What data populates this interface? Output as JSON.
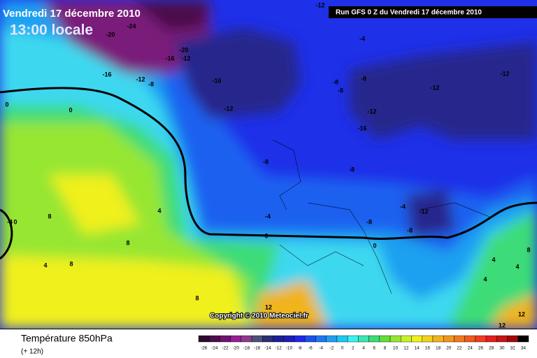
{
  "header": {
    "date": "Vendredi 17 décembre 2010",
    "time": "13:00 locale",
    "run": "Run GFS 0 Z du Vendredi 17 décembre 2010"
  },
  "copyright": "Copyright © 2010 Meteociel.fr",
  "footer": {
    "title": "Température 850hPa",
    "lead": "(+ 12h)"
  },
  "contour_labels": [
    -12,
    -24,
    -20,
    -20,
    -16,
    -12,
    -16,
    -12,
    -8,
    -16,
    -12,
    -4,
    -8,
    -8,
    -8,
    -12,
    -16,
    -12,
    -12,
    0,
    0,
    -8,
    -8,
    -4,
    0,
    4,
    8,
    8,
    4,
    8,
    -4,
    -12,
    -8,
    -8,
    0,
    4,
    4,
    8,
    4,
    8,
    12,
    12,
    12,
    -4,
    0
  ],
  "legend": {
    "ticks": [
      -26,
      -24,
      -22,
      -20,
      -18,
      -16,
      -14,
      -12,
      -10,
      -8,
      -6,
      -4,
      -2,
      0,
      2,
      4,
      6,
      8,
      10,
      12,
      14,
      16,
      18,
      20,
      22,
      24,
      26,
      28,
      30,
      32,
      34
    ],
    "colors": [
      "#2d0a2d",
      "#4b0f4b",
      "#6e146e",
      "#961e96",
      "#8c3c8c",
      "#505078",
      "#2d2d78",
      "#1e1e96",
      "#1e1eb4",
      "#1e28e6",
      "#1e50f0",
      "#1e78f0",
      "#1ea0f0",
      "#1ec8f0",
      "#3cf0f0",
      "#3ce6b4",
      "#3cdc78",
      "#64dc3c",
      "#96e632",
      "#c8f028",
      "#f0f01e",
      "#f0d21e",
      "#f0b41e",
      "#f0961e",
      "#f0781e",
      "#f05a1e",
      "#f03c1e",
      "#e61e1e",
      "#c81414",
      "#a00a0a",
      "#000000"
    ]
  }
}
